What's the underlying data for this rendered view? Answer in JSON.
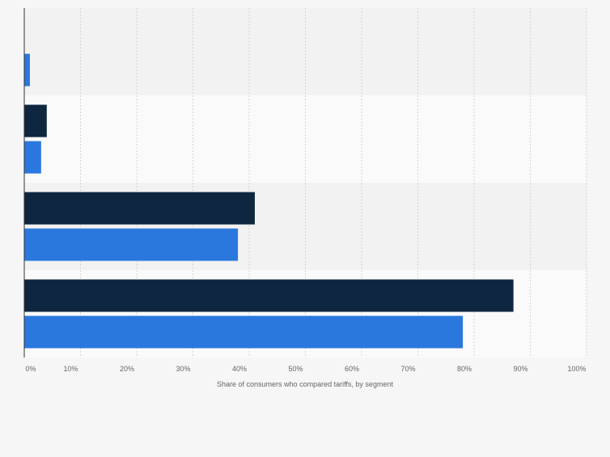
{
  "chart_data": {
    "type": "bar",
    "orientation": "horizontal",
    "categories": [
      "",
      "",
      "",
      ""
    ],
    "series": [
      {
        "color": "#0f2640",
        "values": [
          0,
          4,
          41,
          87
        ]
      },
      {
        "color": "#2a78de",
        "values": [
          1,
          3,
          38,
          78
        ]
      }
    ],
    "xlabel": "Share of consumers who compared tariffs, by segment",
    "xlim": [
      0,
      100
    ],
    "xticks": [
      "0%",
      "10%",
      "20%",
      "30%",
      "40%",
      "50%",
      "60%",
      "70%",
      "80%",
      "90%",
      "100%"
    ],
    "grid": true,
    "legend": "none"
  }
}
